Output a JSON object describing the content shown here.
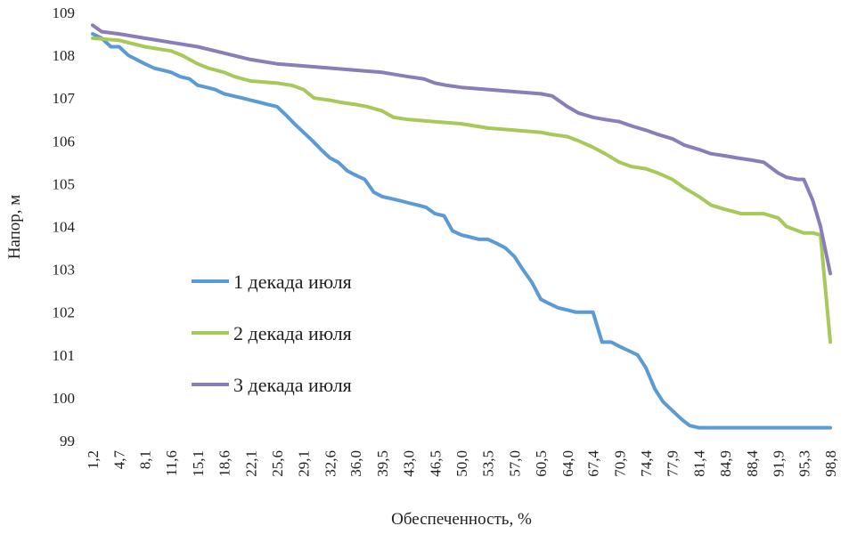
{
  "chart_data": {
    "type": "line",
    "title": "",
    "xlabel": "Обеспеченность, %",
    "ylabel": "Напор, м",
    "ylim": [
      99,
      109
    ],
    "yticks": [
      "99",
      "100",
      "101",
      "102",
      "103",
      "104",
      "105",
      "106",
      "107",
      "108",
      "109"
    ],
    "xticks": [
      "1,2",
      "4,7",
      "8,1",
      "11,6",
      "15,1",
      "18,6",
      "22,1",
      "25,6",
      "29,1",
      "32,6",
      "36,0",
      "39,5",
      "43,0",
      "46,5",
      "50,0",
      "53,5",
      "57,0",
      "60,5",
      "64,0",
      "67,4",
      "70,9",
      "74,4",
      "77,9",
      "81,4",
      "84,9",
      "88,4",
      "91,9",
      "95,3",
      "98,8"
    ],
    "xlim": [
      1.2,
      98.8
    ],
    "grid": false,
    "legend_position": "left-center",
    "series": [
      {
        "name": "1 декада июля",
        "color": "#5b9bd5",
        "x": [
          1.2,
          2.4,
          3.6,
          4.7,
          5.9,
          7.0,
          8.1,
          9.3,
          10.5,
          11.6,
          12.8,
          14.0,
          15.1,
          16.3,
          17.4,
          18.6,
          19.8,
          21.0,
          22.1,
          23.3,
          24.4,
          25.6,
          26.8,
          27.9,
          29.1,
          30.3,
          31.4,
          32.6,
          33.7,
          34.9,
          36.0,
          37.2,
          38.4,
          39.5,
          40.7,
          41.9,
          43.0,
          44.2,
          45.3,
          46.5,
          47.7,
          48.8,
          50.0,
          51.2,
          52.3,
          53.5,
          54.7,
          55.8,
          57.0,
          58.1,
          59.3,
          60.5,
          61.6,
          62.8,
          64.0,
          65.1,
          66.3,
          67.4,
          68.6,
          69.8,
          70.9,
          72.1,
          73.3,
          74.4,
          75.6,
          76.7,
          77.9,
          79.1,
          80.2,
          81.4,
          82.6,
          83.7,
          84.9,
          86.0,
          87.2,
          88.4,
          89.5,
          90.7,
          91.9,
          93.0,
          94.2,
          95.3,
          96.5,
          97.7,
          98.8
        ],
        "values": [
          108.5,
          108.4,
          108.2,
          108.2,
          108.0,
          107.9,
          107.8,
          107.7,
          107.65,
          107.6,
          107.5,
          107.45,
          107.3,
          107.25,
          107.2,
          107.1,
          107.05,
          107.0,
          106.95,
          106.9,
          106.85,
          106.8,
          106.6,
          106.4,
          106.2,
          106.0,
          105.8,
          105.6,
          105.5,
          105.3,
          105.2,
          105.1,
          104.8,
          104.7,
          104.65,
          104.6,
          104.55,
          104.5,
          104.45,
          104.3,
          104.25,
          103.9,
          103.8,
          103.75,
          103.7,
          103.7,
          103.6,
          103.5,
          103.3,
          103.0,
          102.7,
          102.3,
          102.2,
          102.1,
          102.05,
          102.0,
          102.0,
          102.0,
          101.3,
          101.3,
          101.2,
          101.1,
          101.0,
          100.7,
          100.2,
          99.9,
          99.7,
          99.5,
          99.35,
          99.3,
          99.3,
          99.3,
          99.3,
          99.3,
          99.3,
          99.3,
          99.3,
          99.3,
          99.3,
          99.3,
          99.3,
          99.3,
          99.3,
          99.3,
          99.3
        ]
      },
      {
        "name": "2 декада июля",
        "color": "#a9c85a",
        "x": [
          1.2,
          4.7,
          8.1,
          11.6,
          13.0,
          15.1,
          16.5,
          18.6,
          20.0,
          22.1,
          25.6,
          27.5,
          29.1,
          30.5,
          32.6,
          34.0,
          36.0,
          37.5,
          39.5,
          41.0,
          43.0,
          46.5,
          50.0,
          53.5,
          57.0,
          60.5,
          62.0,
          64.0,
          65.5,
          67.4,
          69.0,
          70.9,
          72.5,
          74.4,
          76.0,
          77.9,
          79.5,
          81.4,
          83.0,
          84.9,
          86.0,
          87.0,
          88.4,
          90.0,
          91.9,
          93.0,
          94.5,
          95.3,
          96.5,
          97.5,
          98.8
        ],
        "values": [
          108.4,
          108.35,
          108.2,
          108.1,
          108.0,
          107.8,
          107.7,
          107.6,
          107.5,
          107.4,
          107.35,
          107.3,
          107.2,
          107.0,
          106.95,
          106.9,
          106.85,
          106.8,
          106.7,
          106.55,
          106.5,
          106.45,
          106.4,
          106.3,
          106.25,
          106.2,
          106.15,
          106.1,
          106.0,
          105.85,
          105.7,
          105.5,
          105.4,
          105.35,
          105.25,
          105.1,
          104.9,
          104.7,
          104.5,
          104.4,
          104.35,
          104.3,
          104.3,
          104.3,
          104.2,
          104.0,
          103.9,
          103.85,
          103.85,
          103.8,
          101.3
        ]
      },
      {
        "name": "3 декада июля",
        "color": "#8a7db9",
        "x": [
          1.2,
          2.4,
          4.7,
          8.1,
          11.6,
          15.1,
          18.6,
          22.1,
          25.6,
          29.1,
          32.6,
          36.0,
          39.5,
          43.0,
          45.0,
          46.5,
          48.0,
          50.0,
          53.5,
          57.0,
          60.5,
          62.0,
          64.0,
          65.5,
          67.4,
          69.0,
          70.9,
          72.5,
          74.4,
          76.0,
          77.9,
          79.5,
          81.4,
          83.0,
          84.9,
          86.5,
          88.4,
          90.0,
          91.9,
          93.0,
          94.5,
          95.3,
          96.5,
          97.5,
          98.8
        ],
        "values": [
          108.7,
          108.55,
          108.5,
          108.4,
          108.3,
          108.2,
          108.05,
          107.9,
          107.8,
          107.75,
          107.7,
          107.65,
          107.6,
          107.5,
          107.45,
          107.35,
          107.3,
          107.25,
          107.2,
          107.15,
          107.1,
          107.05,
          106.8,
          106.65,
          106.55,
          106.5,
          106.45,
          106.35,
          106.25,
          106.15,
          106.05,
          105.9,
          105.8,
          105.7,
          105.65,
          105.6,
          105.55,
          105.5,
          105.25,
          105.15,
          105.1,
          105.1,
          104.6,
          104.0,
          102.9
        ]
      }
    ]
  }
}
